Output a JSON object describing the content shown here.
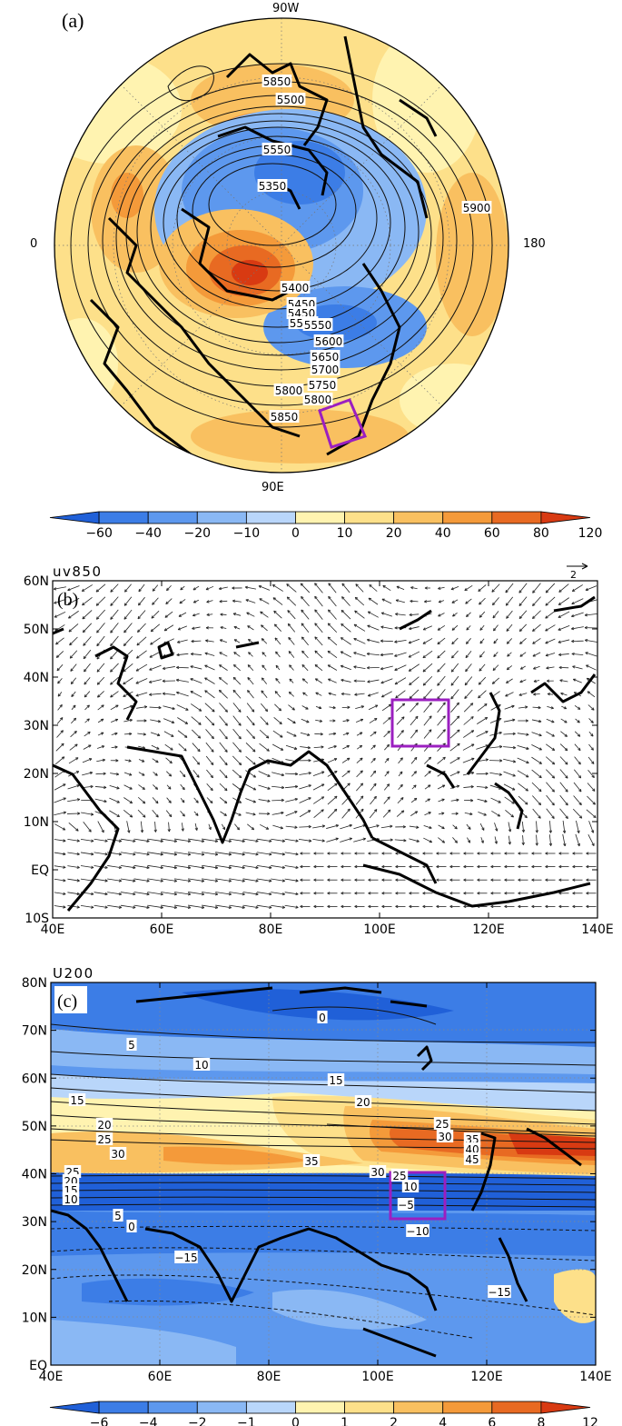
{
  "panel_a": {
    "label": "(a)",
    "lon_labels": {
      "top": "90W",
      "left": "0",
      "right": "180",
      "bottom": "90E"
    },
    "contours": [
      "5350",
      "5400",
      "5450",
      "5450",
      "5500",
      "5500",
      "5550",
      "5550",
      "5600",
      "5650",
      "5700",
      "5750",
      "5800",
      "5800",
      "5850",
      "5850",
      "5900"
    ],
    "colorbar": {
      "ticks": [
        "−60",
        "−40",
        "−20",
        "−10",
        "0",
        "10",
        "20",
        "40",
        "60",
        "80",
        "120"
      ]
    },
    "box_color": "#9b1fc0"
  },
  "panel_b": {
    "field": "uv850",
    "label": "(b)",
    "ref_vector": "2",
    "y_ticks": [
      "60N",
      "50N",
      "40N",
      "30N",
      "20N",
      "10N",
      "EQ",
      "10S"
    ],
    "x_ticks": [
      "40E",
      "60E",
      "80E",
      "100E",
      "120E",
      "140E"
    ]
  },
  "panel_c": {
    "field": "U200",
    "label": "(c)",
    "y_ticks": [
      "80N",
      "70N",
      "60N",
      "50N",
      "40N",
      "30N",
      "20N",
      "10N",
      "EQ"
    ],
    "x_ticks": [
      "40E",
      "60E",
      "80E",
      "100E",
      "120E",
      "140E"
    ],
    "contour_labels": [
      "0",
      "5",
      "10",
      "15",
      "15",
      "20",
      "20",
      "25",
      "25",
      "30",
      "30",
      "35",
      "35",
      "40",
      "45",
      "25",
      "20",
      "15",
      "10",
      "5",
      "0",
      "30",
      "25",
      "10",
      "-5",
      "-10",
      "-15",
      "-15"
    ],
    "colorbar": {
      "ticks": [
        "−6",
        "−4",
        "−2",
        "−1",
        "0",
        "1",
        "2",
        "4",
        "6",
        "8",
        "12"
      ]
    }
  },
  "colors": {
    "neg": [
      "#2060d8",
      "#3c7de6",
      "#5d98ee",
      "#8ab8f4",
      "#b9d6fa"
    ],
    "pos": [
      "#fff3b0",
      "#fde08a",
      "#f9c060",
      "#f49a3a",
      "#e86a22",
      "#d83a12"
    ],
    "box": "#9b1fc0"
  }
}
